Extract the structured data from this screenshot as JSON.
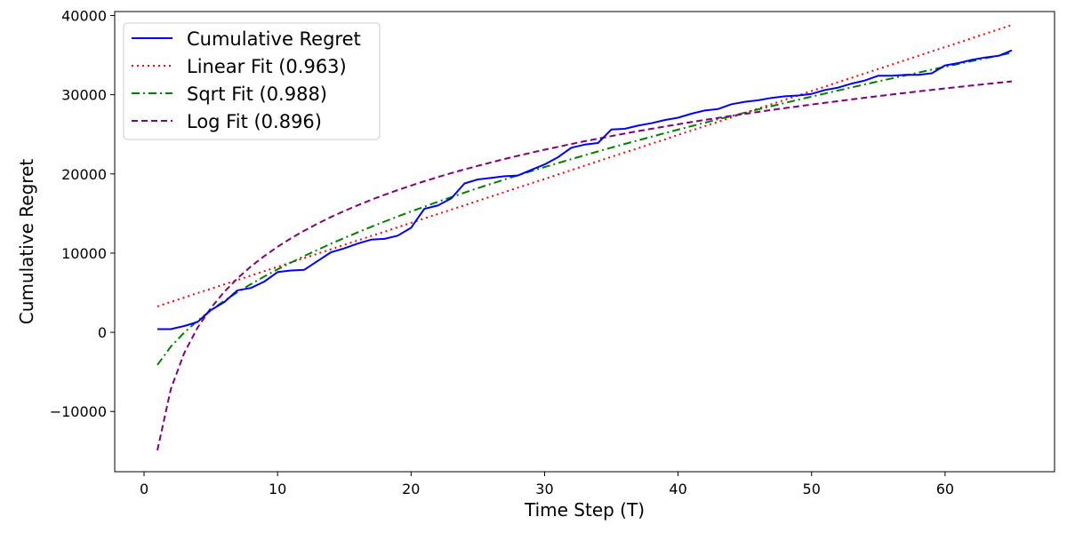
{
  "chart_data": {
    "type": "line",
    "title": "",
    "xlabel": "Time Step (T)",
    "ylabel": "Cumulative Regret",
    "xlim": [
      -2.2,
      68.2
    ],
    "ylim": [
      -17600,
      40500
    ],
    "xticks": [
      0,
      10,
      20,
      30,
      40,
      50,
      60
    ],
    "yticks": [
      -10000,
      0,
      10000,
      20000,
      30000,
      40000
    ],
    "grid": false,
    "legend_position": "top-left",
    "series": [
      {
        "name": "Cumulative Regret",
        "color": "#0000ff",
        "dash": "solid",
        "x": [
          1,
          2,
          3,
          4,
          5,
          6,
          7,
          8,
          9,
          10,
          11,
          12,
          13,
          14,
          15,
          16,
          17,
          18,
          19,
          20,
          21,
          22,
          23,
          24,
          25,
          26,
          27,
          28,
          29,
          30,
          31,
          32,
          33,
          34,
          35,
          36,
          37,
          38,
          39,
          40,
          41,
          42,
          43,
          44,
          45,
          46,
          47,
          48,
          49,
          50,
          51,
          52,
          53,
          54,
          55,
          56,
          57,
          58,
          59,
          60,
          61,
          62,
          63,
          64,
          65
        ],
        "y": [
          400,
          400,
          800,
          1300,
          2800,
          3800,
          5300,
          5600,
          6400,
          7600,
          7800,
          7900,
          9000,
          10100,
          10600,
          11200,
          11700,
          11800,
          12200,
          13200,
          15600,
          16000,
          16900,
          18800,
          19300,
          19500,
          19700,
          19800,
          20500,
          21200,
          22100,
          23300,
          23700,
          23900,
          25600,
          25700,
          26100,
          26400,
          26800,
          27100,
          27600,
          28000,
          28200,
          28800,
          29100,
          29300,
          29600,
          29800,
          29900,
          30100,
          30600,
          30900,
          31400,
          31800,
          32400,
          32400,
          32500,
          32500,
          32700,
          33700,
          34000,
          34400,
          34700,
          34900,
          35600
        ]
      },
      {
        "name": "Linear Fit (0.963)",
        "color": "#ff0000",
        "dash": "dotted",
        "fit": "linear",
        "params": {
          "a": 555,
          "b": 2720
        }
      },
      {
        "name": "Sqrt Fit (0.988)",
        "color": "#008000",
        "dash": "dashdot",
        "fit": "sqrt",
        "params": {
          "a": 5580,
          "b": -9700
        }
      },
      {
        "name": "Log Fit (0.896)",
        "color": "#800080",
        "dash": "dashed",
        "fit": "log",
        "params": {
          "a": 11160,
          "b": -14900
        }
      }
    ]
  }
}
